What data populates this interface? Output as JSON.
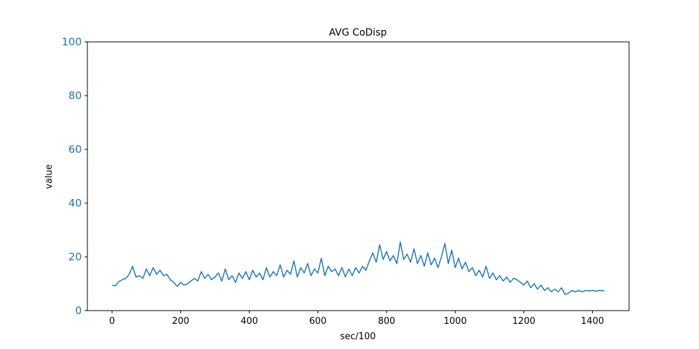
{
  "chart_data": {
    "type": "line",
    "title": "AVG CoDisp",
    "x_label": "sec/100",
    "y_label": "value",
    "x": [
      0,
      10,
      20,
      30,
      40,
      50,
      60,
      70,
      80,
      90,
      100,
      110,
      120,
      130,
      140,
      150,
      160,
      170,
      180,
      190,
      200,
      210,
      220,
      230,
      240,
      250,
      260,
      270,
      280,
      290,
      300,
      310,
      320,
      330,
      340,
      350,
      360,
      370,
      380,
      390,
      400,
      410,
      420,
      430,
      440,
      450,
      460,
      470,
      480,
      490,
      500,
      510,
      520,
      530,
      540,
      550,
      560,
      570,
      580,
      590,
      600,
      610,
      620,
      630,
      640,
      650,
      660,
      670,
      680,
      690,
      700,
      710,
      720,
      730,
      740,
      750,
      760,
      770,
      780,
      790,
      800,
      810,
      820,
      830,
      840,
      850,
      860,
      870,
      880,
      890,
      900,
      910,
      920,
      930,
      940,
      950,
      960,
      970,
      980,
      990,
      1000,
      1010,
      1020,
      1030,
      1040,
      1050,
      1060,
      1070,
      1080,
      1090,
      1100,
      1110,
      1120,
      1130,
      1140,
      1150,
      1160,
      1170,
      1180,
      1190,
      1200,
      1210,
      1220,
      1230,
      1240,
      1250,
      1260,
      1270,
      1280,
      1290,
      1300,
      1310,
      1320,
      1330,
      1340,
      1350,
      1360,
      1370,
      1380,
      1390,
      1400,
      1410,
      1420,
      1430,
      1435
    ],
    "series": [
      {
        "name": "AVG CoDisp",
        "color": "#1f77b4",
        "values": [
          9.5,
          9.2,
          10.8,
          11.5,
          12.0,
          13.5,
          16.5,
          12.5,
          13.0,
          12.0,
          15.5,
          13.0,
          16.0,
          13.5,
          15.0,
          13.0,
          13.5,
          11.5,
          10.5,
          9.0,
          10.5,
          9.5,
          10.0,
          11.0,
          12.0,
          11.0,
          14.5,
          12.0,
          13.5,
          11.5,
          12.5,
          14.0,
          11.0,
          15.5,
          11.5,
          13.0,
          10.5,
          14.0,
          12.0,
          14.5,
          11.5,
          15.0,
          12.5,
          14.0,
          11.5,
          16.0,
          12.5,
          14.5,
          13.0,
          17.0,
          12.5,
          15.0,
          13.5,
          18.5,
          12.5,
          16.0,
          14.0,
          17.5,
          13.0,
          15.5,
          14.0,
          19.5,
          13.0,
          16.5,
          14.5,
          15.5,
          13.0,
          16.0,
          12.5,
          15.5,
          13.0,
          16.0,
          14.0,
          16.5,
          15.0,
          18.5,
          21.5,
          18.0,
          24.5,
          19.0,
          22.0,
          18.5,
          20.5,
          17.5,
          25.5,
          19.0,
          21.0,
          18.0,
          23.0,
          17.5,
          20.5,
          16.5,
          21.5,
          17.0,
          19.5,
          16.0,
          20.0,
          25.0,
          17.5,
          22.5,
          16.0,
          19.5,
          15.5,
          18.0,
          14.5,
          16.0,
          13.0,
          15.0,
          12.5,
          16.5,
          12.0,
          14.0,
          11.5,
          13.0,
          11.0,
          12.5,
          10.5,
          12.0,
          11.5,
          10.5,
          9.5,
          11.0,
          8.5,
          10.0,
          8.0,
          9.5,
          7.5,
          8.5,
          7.0,
          8.0,
          7.0,
          8.5,
          6.0,
          6.5,
          7.5,
          7.0,
          7.5,
          7.0,
          7.5,
          7.3,
          7.5,
          7.2,
          7.5,
          7.4,
          7.3
        ]
      }
    ],
    "xlim": [
      -71.75,
      1506.75
    ],
    "xticks": [
      0,
      200,
      400,
      600,
      800,
      1000,
      1200,
      1400
    ],
    "ylim": [
      0,
      100
    ],
    "yticks": [
      0,
      20,
      40,
      60,
      80,
      100
    ],
    "ytick_color": "#1f77b4",
    "grid": false
  }
}
